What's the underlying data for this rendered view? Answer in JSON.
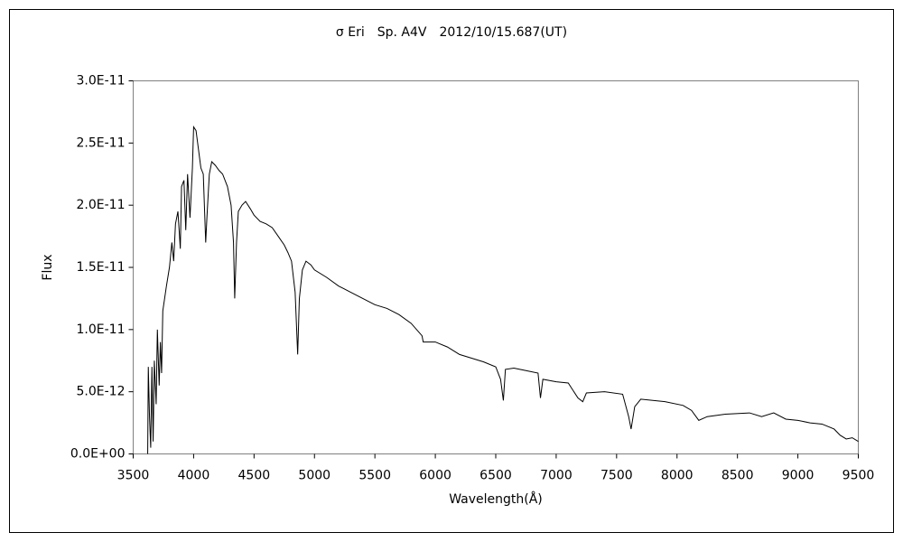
{
  "chart_data": {
    "type": "line",
    "title": "σ Eri　Sp. A4V　2012/10/15.687(UT)",
    "xlabel": "Wavelength(Å)",
    "ylabel": "Flux",
    "color": "#000000",
    "xlim": [
      3500,
      9500
    ],
    "xticks": [
      3500,
      4000,
      4500,
      5000,
      5500,
      6000,
      6500,
      7000,
      7500,
      8000,
      8500,
      9000,
      9500
    ],
    "ylim": [
      0,
      3e-11
    ],
    "yticks": [
      {
        "value": 0,
        "label": "0.0E+00"
      },
      {
        "value": 5e-12,
        "label": "5.0E-12"
      },
      {
        "value": 1e-11,
        "label": "1.0E-11"
      },
      {
        "value": 1.5e-11,
        "label": "1.5E-11"
      },
      {
        "value": 2e-11,
        "label": "2.0E-11"
      },
      {
        "value": 2.5e-11,
        "label": "2.5E-11"
      },
      {
        "value": 3e-11,
        "label": "3.0E-11"
      }
    ],
    "x": [
      3620,
      3625,
      3635,
      3645,
      3655,
      3665,
      3675,
      3690,
      3700,
      3715,
      3725,
      3735,
      3745,
      3760,
      3775,
      3800,
      3820,
      3835,
      3850,
      3870,
      3890,
      3900,
      3920,
      3935,
      3950,
      3970,
      3990,
      4000,
      4020,
      4040,
      4060,
      4080,
      4100,
      4110,
      4130,
      4150,
      4180,
      4210,
      4240,
      4280,
      4310,
      4330,
      4340,
      4355,
      4370,
      4400,
      4430,
      4470,
      4500,
      4550,
      4600,
      4650,
      4700,
      4750,
      4780,
      4810,
      4840,
      4861,
      4875,
      4900,
      4930,
      4970,
      5000,
      5100,
      5200,
      5300,
      5400,
      5500,
      5600,
      5700,
      5800,
      5890,
      5900,
      6000,
      6100,
      6200,
      6300,
      6400,
      6500,
      6540,
      6563,
      6580,
      6650,
      6750,
      6850,
      6870,
      6890,
      7000,
      7100,
      7180,
      7220,
      7250,
      7400,
      7550,
      7600,
      7620,
      7650,
      7700,
      7900,
      8050,
      8120,
      8180,
      8250,
      8400,
      8600,
      8700,
      8800,
      8900,
      9000,
      9100,
      9200,
      9300,
      9350,
      9400,
      9450,
      9500
    ],
    "values": [
      0,
      7e-12,
      3e-12,
      5e-13,
      7e-12,
      1e-12,
      7.5e-12,
      4e-12,
      1e-11,
      5.5e-12,
      9e-12,
      6.5e-12,
      1.15e-11,
      1.25e-11,
      1.35e-11,
      1.5e-11,
      1.7e-11,
      1.55e-11,
      1.85e-11,
      1.95e-11,
      1.65e-11,
      2.15e-11,
      2.2e-11,
      1.8e-11,
      2.25e-11,
      1.9e-11,
      2.3e-11,
      2.63e-11,
      2.6e-11,
      2.45e-11,
      2.3e-11,
      2.25e-11,
      1.7e-11,
      1.9e-11,
      2.25e-11,
      2.35e-11,
      2.32e-11,
      2.28e-11,
      2.25e-11,
      2.15e-11,
      2e-11,
      1.7e-11,
      1.25e-11,
      1.7e-11,
      1.95e-11,
      2e-11,
      2.03e-11,
      1.97e-11,
      1.92e-11,
      1.87e-11,
      1.85e-11,
      1.82e-11,
      1.75e-11,
      1.68e-11,
      1.62e-11,
      1.55e-11,
      1.3e-11,
      8e-12,
      1.25e-11,
      1.48e-11,
      1.55e-11,
      1.52e-11,
      1.48e-11,
      1.42e-11,
      1.35e-11,
      1.3e-11,
      1.25e-11,
      1.2e-11,
      1.17e-11,
      1.12e-11,
      1.05e-11,
      9.5e-12,
      9e-12,
      9e-12,
      8.6e-12,
      8e-12,
      7.7e-12,
      7.4e-12,
      7e-12,
      6e-12,
      4.3e-12,
      6.8e-12,
      6.9e-12,
      6.7e-12,
      6.5e-12,
      4.5e-12,
      6e-12,
      5.8e-12,
      5.7e-12,
      4.5e-12,
      4.2e-12,
      4.9e-12,
      5e-12,
      4.8e-12,
      3e-12,
      2e-12,
      3.8e-12,
      4.4e-12,
      4.2e-12,
      3.9e-12,
      3.5e-12,
      2.7e-12,
      3e-12,
      3.2e-12,
      3.3e-12,
      3e-12,
      3.3e-12,
      2.8e-12,
      2.7e-12,
      2.5e-12,
      2.4e-12,
      2e-12,
      1.5e-12,
      1.2e-12,
      1.3e-12,
      1e-12
    ]
  }
}
